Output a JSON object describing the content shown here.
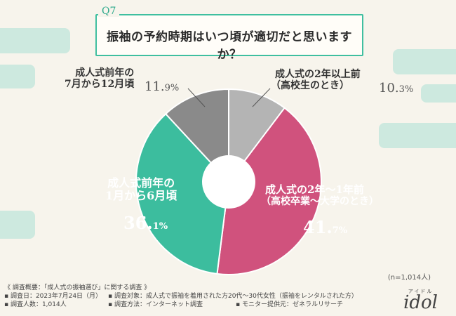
{
  "question": {
    "number": "Q7",
    "text": "振袖の予約時期はいつ頃が適切だと思いますか？"
  },
  "colors": {
    "slice_1": "#b4b4b4",
    "slice_2": "#d0527d",
    "slice_3": "#3cbd9e",
    "slice_4": "#8a8a8a",
    "accent": "#3fbfa0"
  },
  "chart_data": {
    "type": "pie",
    "title": "振袖の予約時期はいつ頃が適切だと思いますか？",
    "donut": true,
    "slices": [
      {
        "label": "成人式の2年以上前（高校生のとき）",
        "value": 10.3
      },
      {
        "label": "成人式の2年〜1年前（高校卒業〜大学のとき）",
        "value": 41.7
      },
      {
        "label": "成人式前年の1月から6月頃",
        "value": 36.1
      },
      {
        "label": "成人式前年の7月から12月頃",
        "value": 11.9
      }
    ]
  },
  "labels": {
    "s1_line1": "成人式の2年以上前",
    "s1_line2": "（高校生のとき）",
    "s1_int": "10.",
    "s1_dec": "3%",
    "s2_line1": "成人式の2年〜1年前",
    "s2_line2": "（高校卒業〜大学のとき）",
    "s2_int": "41.",
    "s2_dec": "7%",
    "s3_line1": "成人式前年の",
    "s3_line2": "1月から6月頃",
    "s3_int": "36.",
    "s3_dec": "1%",
    "s4_line1": "成人式前年の",
    "s4_line2": "7月から12月頃",
    "s4_int": "11.",
    "s4_dec": "9%"
  },
  "sample_note": "(n=1,014人)",
  "footer": {
    "overview": "《 調査概要：「成人式の振袖選び」に関する調査 》",
    "date": "▪ 調査日：2023年7月24日（月）",
    "count": "▪ 調査人数：1,014人",
    "target": "▪ 調査対象：成人式で振袖を着用された方20代〜30代女性（振袖をレンタルされた方）",
    "method": "▪ 調査方法：インターネット調査",
    "provider": "▪ モニター提供元：ゼネラルリサーチ"
  },
  "logo": {
    "kana": "アイドル",
    "word": "idol"
  }
}
